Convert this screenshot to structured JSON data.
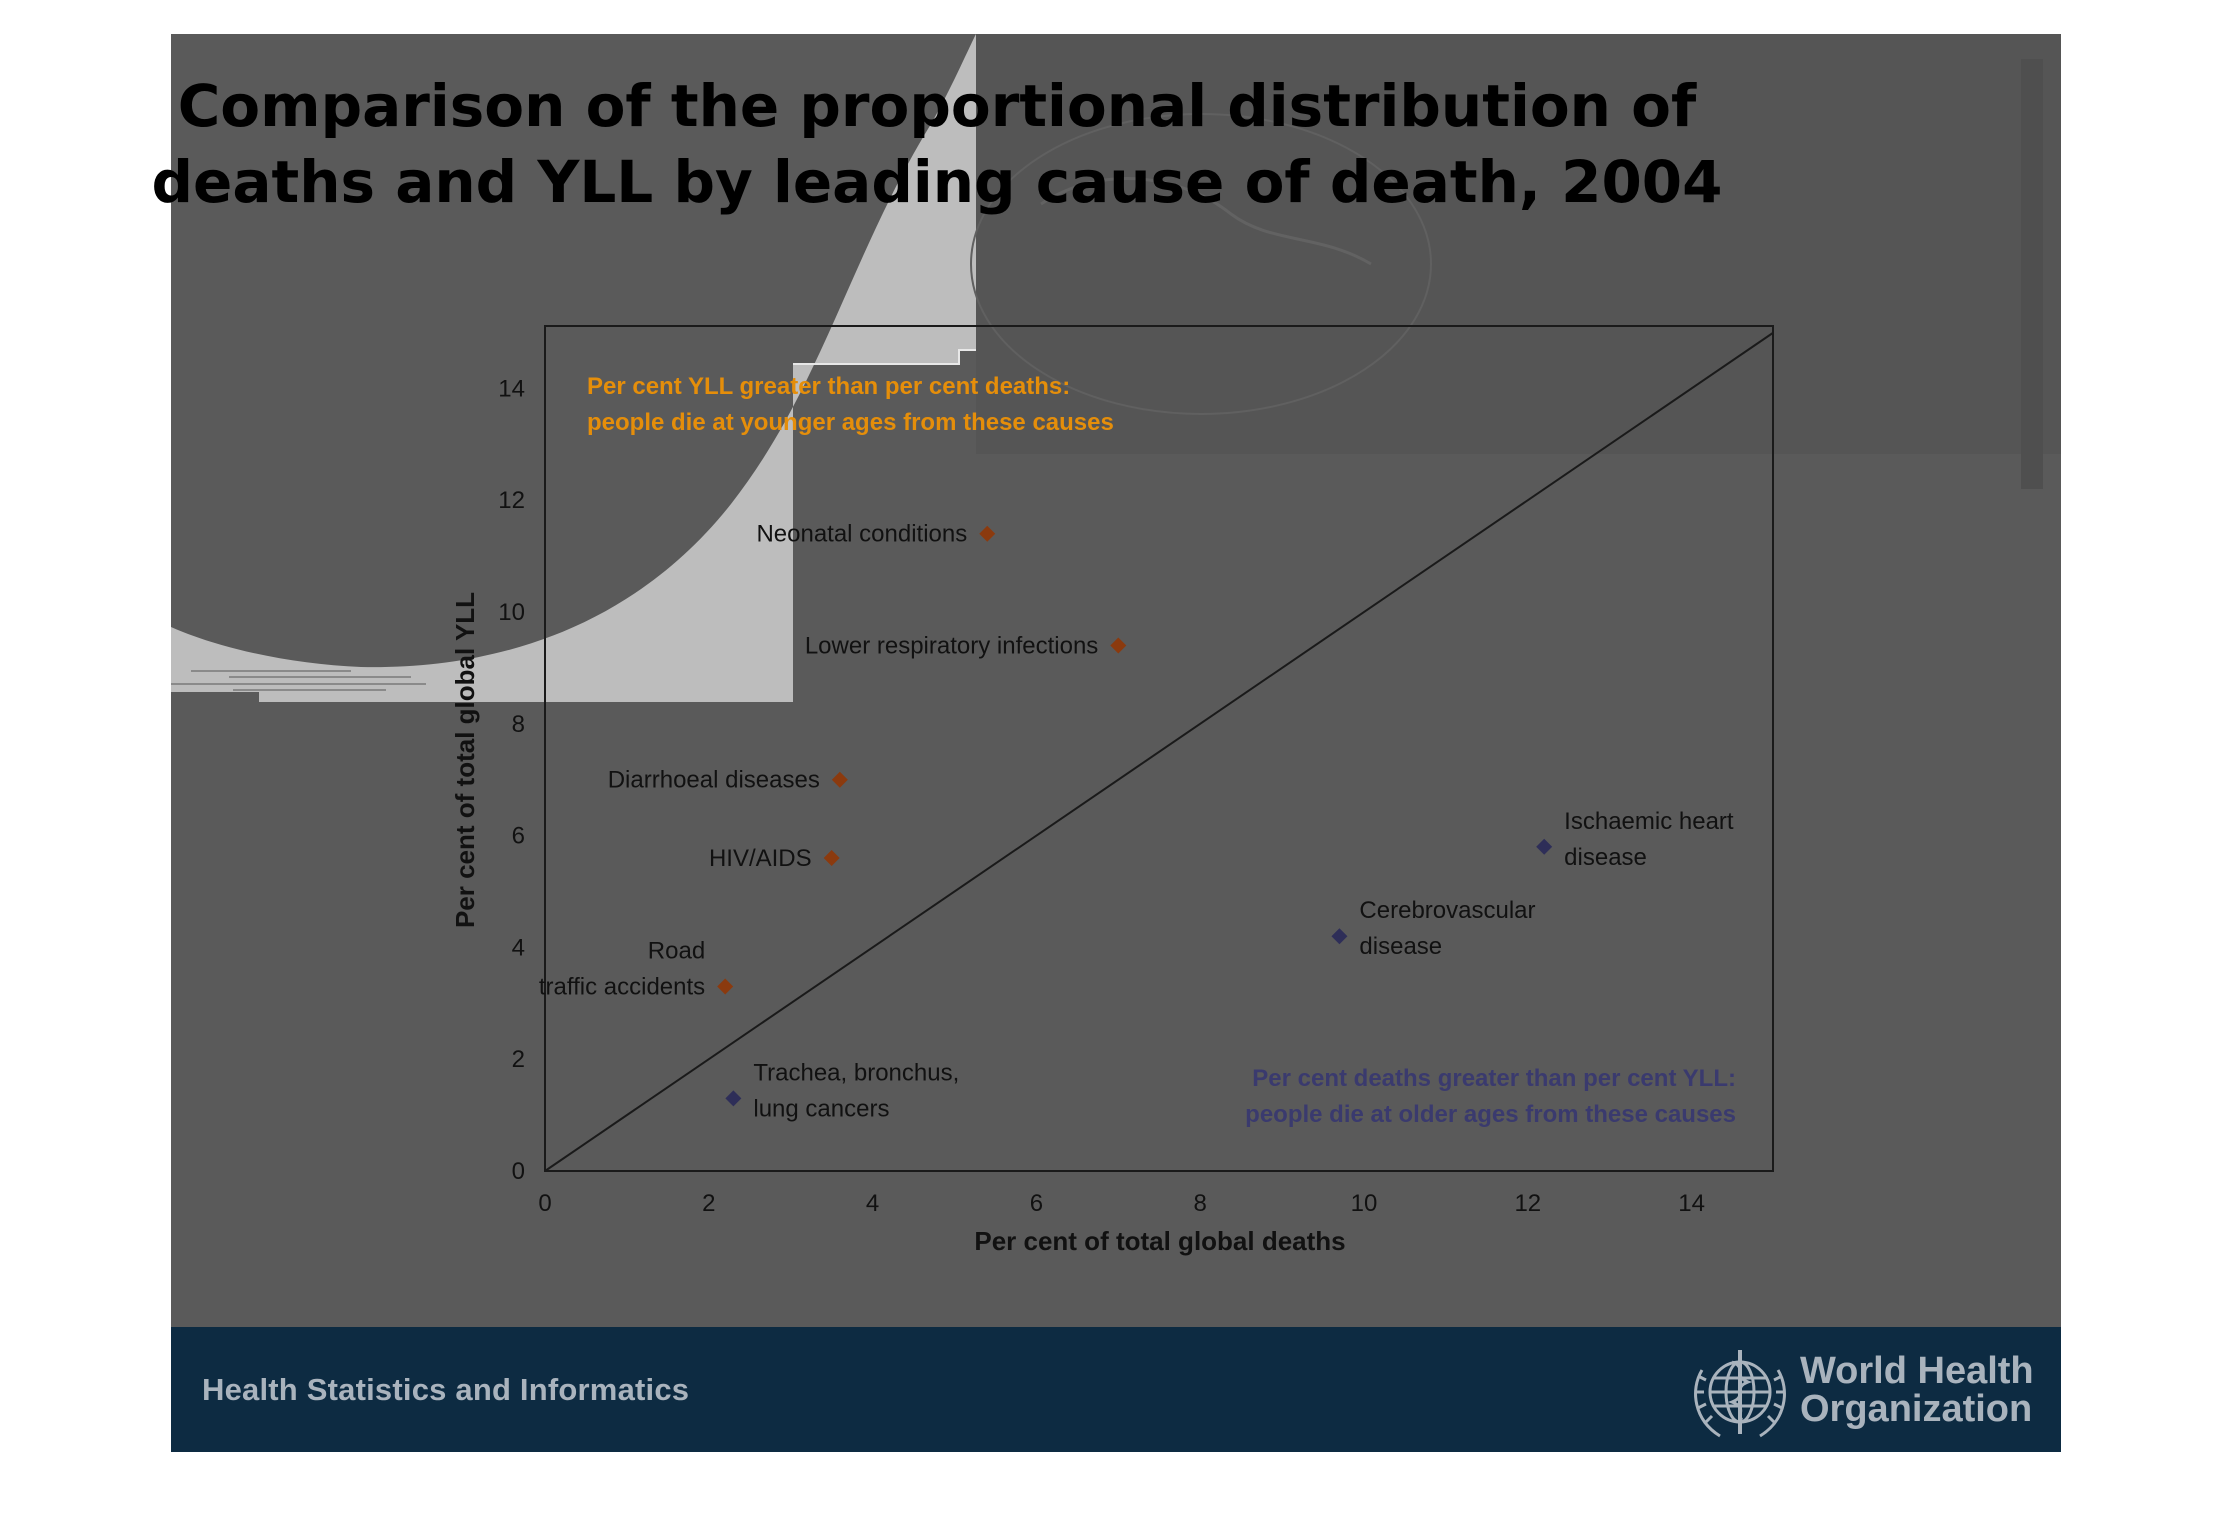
{
  "slide": {
    "title_lines": [
      "Comparison of the proportional distribution of",
      "deaths and YLL by leading cause of death, 2004"
    ],
    "footer_text": "Health Statistics and Informatics",
    "org_name_lines": [
      "World Health",
      "Organization"
    ],
    "colors": {
      "slide_bg": "#5a5a5a",
      "footer_bar": "#0d2b42",
      "overlay_light": "#bdbdbd",
      "footer_text": "#a9b3bd"
    }
  },
  "chart_data": {
    "type": "scatter",
    "title": "Comparison of the proportional distribution of deaths and YLL by leading cause of death, 2004",
    "xlabel": "Per cent of total global deaths",
    "ylabel": "Per cent of total global YLL",
    "xlim": [
      0,
      15
    ],
    "ylim": [
      0,
      15
    ],
    "x_ticks": [
      "0",
      "2",
      "4",
      "6",
      "8",
      "10",
      "12",
      "14"
    ],
    "y_ticks": [
      "0",
      "2",
      "4",
      "6",
      "8",
      "10",
      "12",
      "14"
    ],
    "reference_line": "y = x",
    "annotations": {
      "upper_left": [
        "Per cent YLL greater than per cent deaths:",
        "people die at younger ages from these causes"
      ],
      "lower_right": [
        "Per cent deaths greater than per cent YLL:",
        "people die at older ages from these causes"
      ]
    },
    "series": [
      {
        "group": "upper",
        "color": "#8b3a0e",
        "points": [
          {
            "label_lines": [
              "Neonatal conditions"
            ],
            "x": 5.4,
            "y": 11.4
          },
          {
            "label_lines": [
              "Lower respiratory infections"
            ],
            "x": 7.0,
            "y": 9.4
          },
          {
            "label_lines": [
              "Diarrhoeal diseases"
            ],
            "x": 3.6,
            "y": 7.0
          },
          {
            "label_lines": [
              "HIV/AIDS"
            ],
            "x": 3.5,
            "y": 5.6
          },
          {
            "label_lines": [
              "Road",
              "traffic accidents"
            ],
            "x": 2.2,
            "y": 3.3
          }
        ]
      },
      {
        "group": "lower",
        "color": "#2e2e58",
        "points": [
          {
            "label_lines": [
              "Ischaemic heart",
              "disease"
            ],
            "x": 12.2,
            "y": 5.8
          },
          {
            "label_lines": [
              "Cerebrovascular",
              "disease"
            ],
            "x": 9.7,
            "y": 4.2
          },
          {
            "label_lines": [
              "Trachea, bronchus,",
              "lung cancers"
            ],
            "x": 2.3,
            "y": 1.3
          }
        ]
      }
    ]
  }
}
